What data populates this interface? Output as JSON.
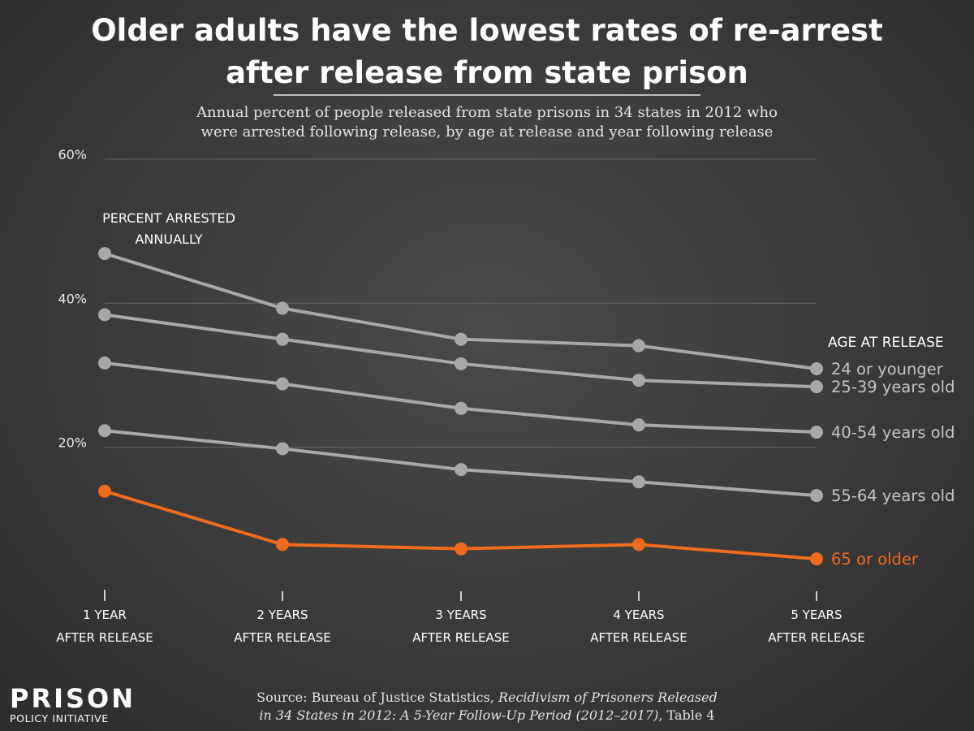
{
  "chart_data": {
    "type": "line",
    "title": "Older adults have the lowest rates of re-arrest after release from state prison",
    "title_lines": [
      "Older adults have the lowest rates of re-arrest",
      "after release from state prison"
    ],
    "subtitle_lines": [
      "Annual percent of people released from state prisons in 34 states in 2012 who",
      "were arrested following release, by age at release and year following release"
    ],
    "ylabel_lines": [
      "PERCENT ARRESTED",
      "ANNUALLY"
    ],
    "legend_title": "AGE AT RELEASE",
    "categories": [
      {
        "line1": "1 YEAR",
        "line2": "AFTER RELEASE"
      },
      {
        "line1": "2 YEARS",
        "line2": "AFTER RELEASE"
      },
      {
        "line1": "3 YEARS",
        "line2": "AFTER RELEASE"
      },
      {
        "line1": "4 YEARS",
        "line2": "AFTER RELEASE"
      },
      {
        "line1": "5 YEARS",
        "line2": "AFTER RELEASE"
      }
    ],
    "yticks": [
      {
        "value": 20,
        "label": "20%"
      },
      {
        "value": 40,
        "label": "40%"
      },
      {
        "value": 60,
        "label": "60%"
      }
    ],
    "ylim": [
      0,
      60
    ],
    "series": [
      {
        "name": "24 or younger",
        "color": "#a8a8a8",
        "values": [
          46.9,
          39.3,
          35.0,
          34.1,
          30.9
        ]
      },
      {
        "name": "25-39 years old",
        "color": "#a8a8a8",
        "values": [
          38.4,
          35.0,
          31.6,
          29.3,
          28.4
        ]
      },
      {
        "name": "40-54 years old",
        "color": "#a8a8a8",
        "values": [
          31.7,
          28.8,
          25.4,
          23.1,
          22.1
        ]
      },
      {
        "name": "55-64 years old",
        "color": "#a8a8a8",
        "values": [
          22.3,
          19.8,
          16.9,
          15.2,
          13.3
        ]
      },
      {
        "name": "65 or older",
        "color": "#ef6b1f",
        "values": [
          13.9,
          6.5,
          5.9,
          6.5,
          4.5
        ]
      }
    ]
  },
  "source": {
    "prefix": "Source: Bureau of Justice Statistics, ",
    "italic_line1": "Recidivism of Prisoners Released",
    "italic_line2": "in 34 States in 2012: A 5-Year Follow-Up Period (2012–2017)",
    "suffix": ", Table 4"
  },
  "logo": {
    "main": "PRISON",
    "sub": "POLICY INITIATIVE"
  },
  "colors": {
    "background": "#3a3a3a",
    "gray_line": "#a8a8a8",
    "orange_line": "#ef6b1f",
    "axis": "#d0d0d0",
    "grid": "#5e5e5e"
  }
}
